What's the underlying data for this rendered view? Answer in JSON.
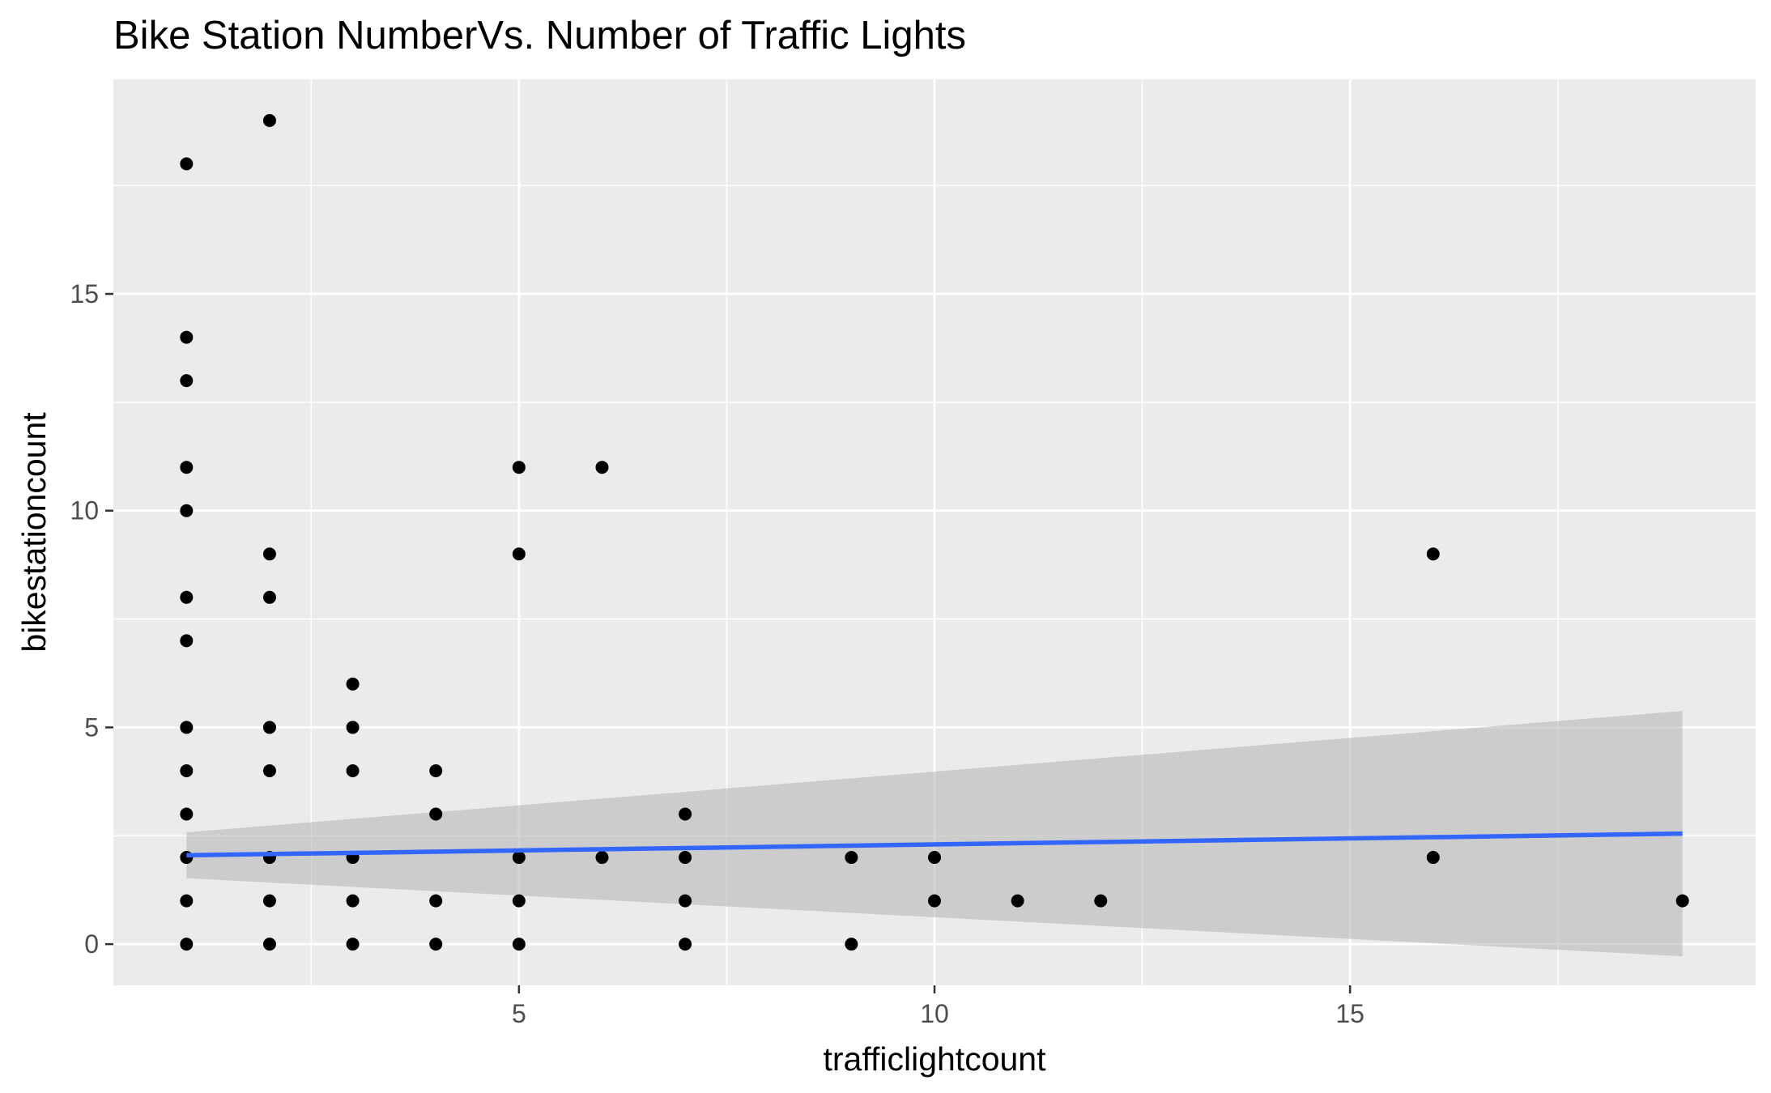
{
  "chart_data": {
    "type": "scatter",
    "title": "Bike Station NumberVs. Number of Traffic Lights",
    "xlabel": "trafficlightcount",
    "ylabel": "bikestationcount",
    "xlim": [
      0.12,
      19.88
    ],
    "ylim": [
      -0.95,
      19.95
    ],
    "x_ticks": [
      5,
      10,
      15
    ],
    "x_tick_labels": [
      "5",
      "10",
      "15"
    ],
    "y_ticks": [
      0,
      5,
      10,
      15
    ],
    "y_tick_labels": [
      "0",
      "5",
      "10",
      "15"
    ],
    "grid": true,
    "legend": "none",
    "colors": {
      "panel": "#ebebeb",
      "grid": "#ffffff",
      "points": "#000000",
      "fit_line": "#3366ff",
      "ribbon": "#b3b3b3"
    },
    "points": [
      [
        1,
        18
      ],
      [
        1,
        14
      ],
      [
        1,
        13
      ],
      [
        1,
        11
      ],
      [
        1,
        10
      ],
      [
        1,
        8
      ],
      [
        1,
        7
      ],
      [
        1,
        5
      ],
      [
        1,
        4
      ],
      [
        1,
        3
      ],
      [
        1,
        2
      ],
      [
        1,
        1
      ],
      [
        1,
        0
      ],
      [
        2,
        19
      ],
      [
        2,
        9
      ],
      [
        2,
        8
      ],
      [
        2,
        5
      ],
      [
        2,
        4
      ],
      [
        2,
        2
      ],
      [
        2,
        1
      ],
      [
        2,
        0
      ],
      [
        3,
        6
      ],
      [
        3,
        5
      ],
      [
        3,
        4
      ],
      [
        3,
        2
      ],
      [
        3,
        1
      ],
      [
        3,
        0
      ],
      [
        4,
        4
      ],
      [
        4,
        3
      ],
      [
        4,
        1
      ],
      [
        4,
        0
      ],
      [
        5,
        11
      ],
      [
        5,
        9
      ],
      [
        5,
        2
      ],
      [
        5,
        1
      ],
      [
        5,
        0
      ],
      [
        6,
        11
      ],
      [
        6,
        2
      ],
      [
        7,
        3
      ],
      [
        7,
        2
      ],
      [
        7,
        1
      ],
      [
        7,
        0
      ],
      [
        9,
        2
      ],
      [
        9,
        0
      ],
      [
        10,
        2
      ],
      [
        10,
        1
      ],
      [
        11,
        1
      ],
      [
        12,
        1
      ],
      [
        16,
        9
      ],
      [
        16,
        2
      ],
      [
        19,
        1
      ]
    ],
    "fit": {
      "method": "lm",
      "x": [
        1,
        19
      ],
      "y": [
        2.05,
        2.55
      ],
      "ci_lower": [
        1.52,
        -0.28
      ],
      "ci_upper": [
        2.58,
        5.38
      ]
    }
  }
}
